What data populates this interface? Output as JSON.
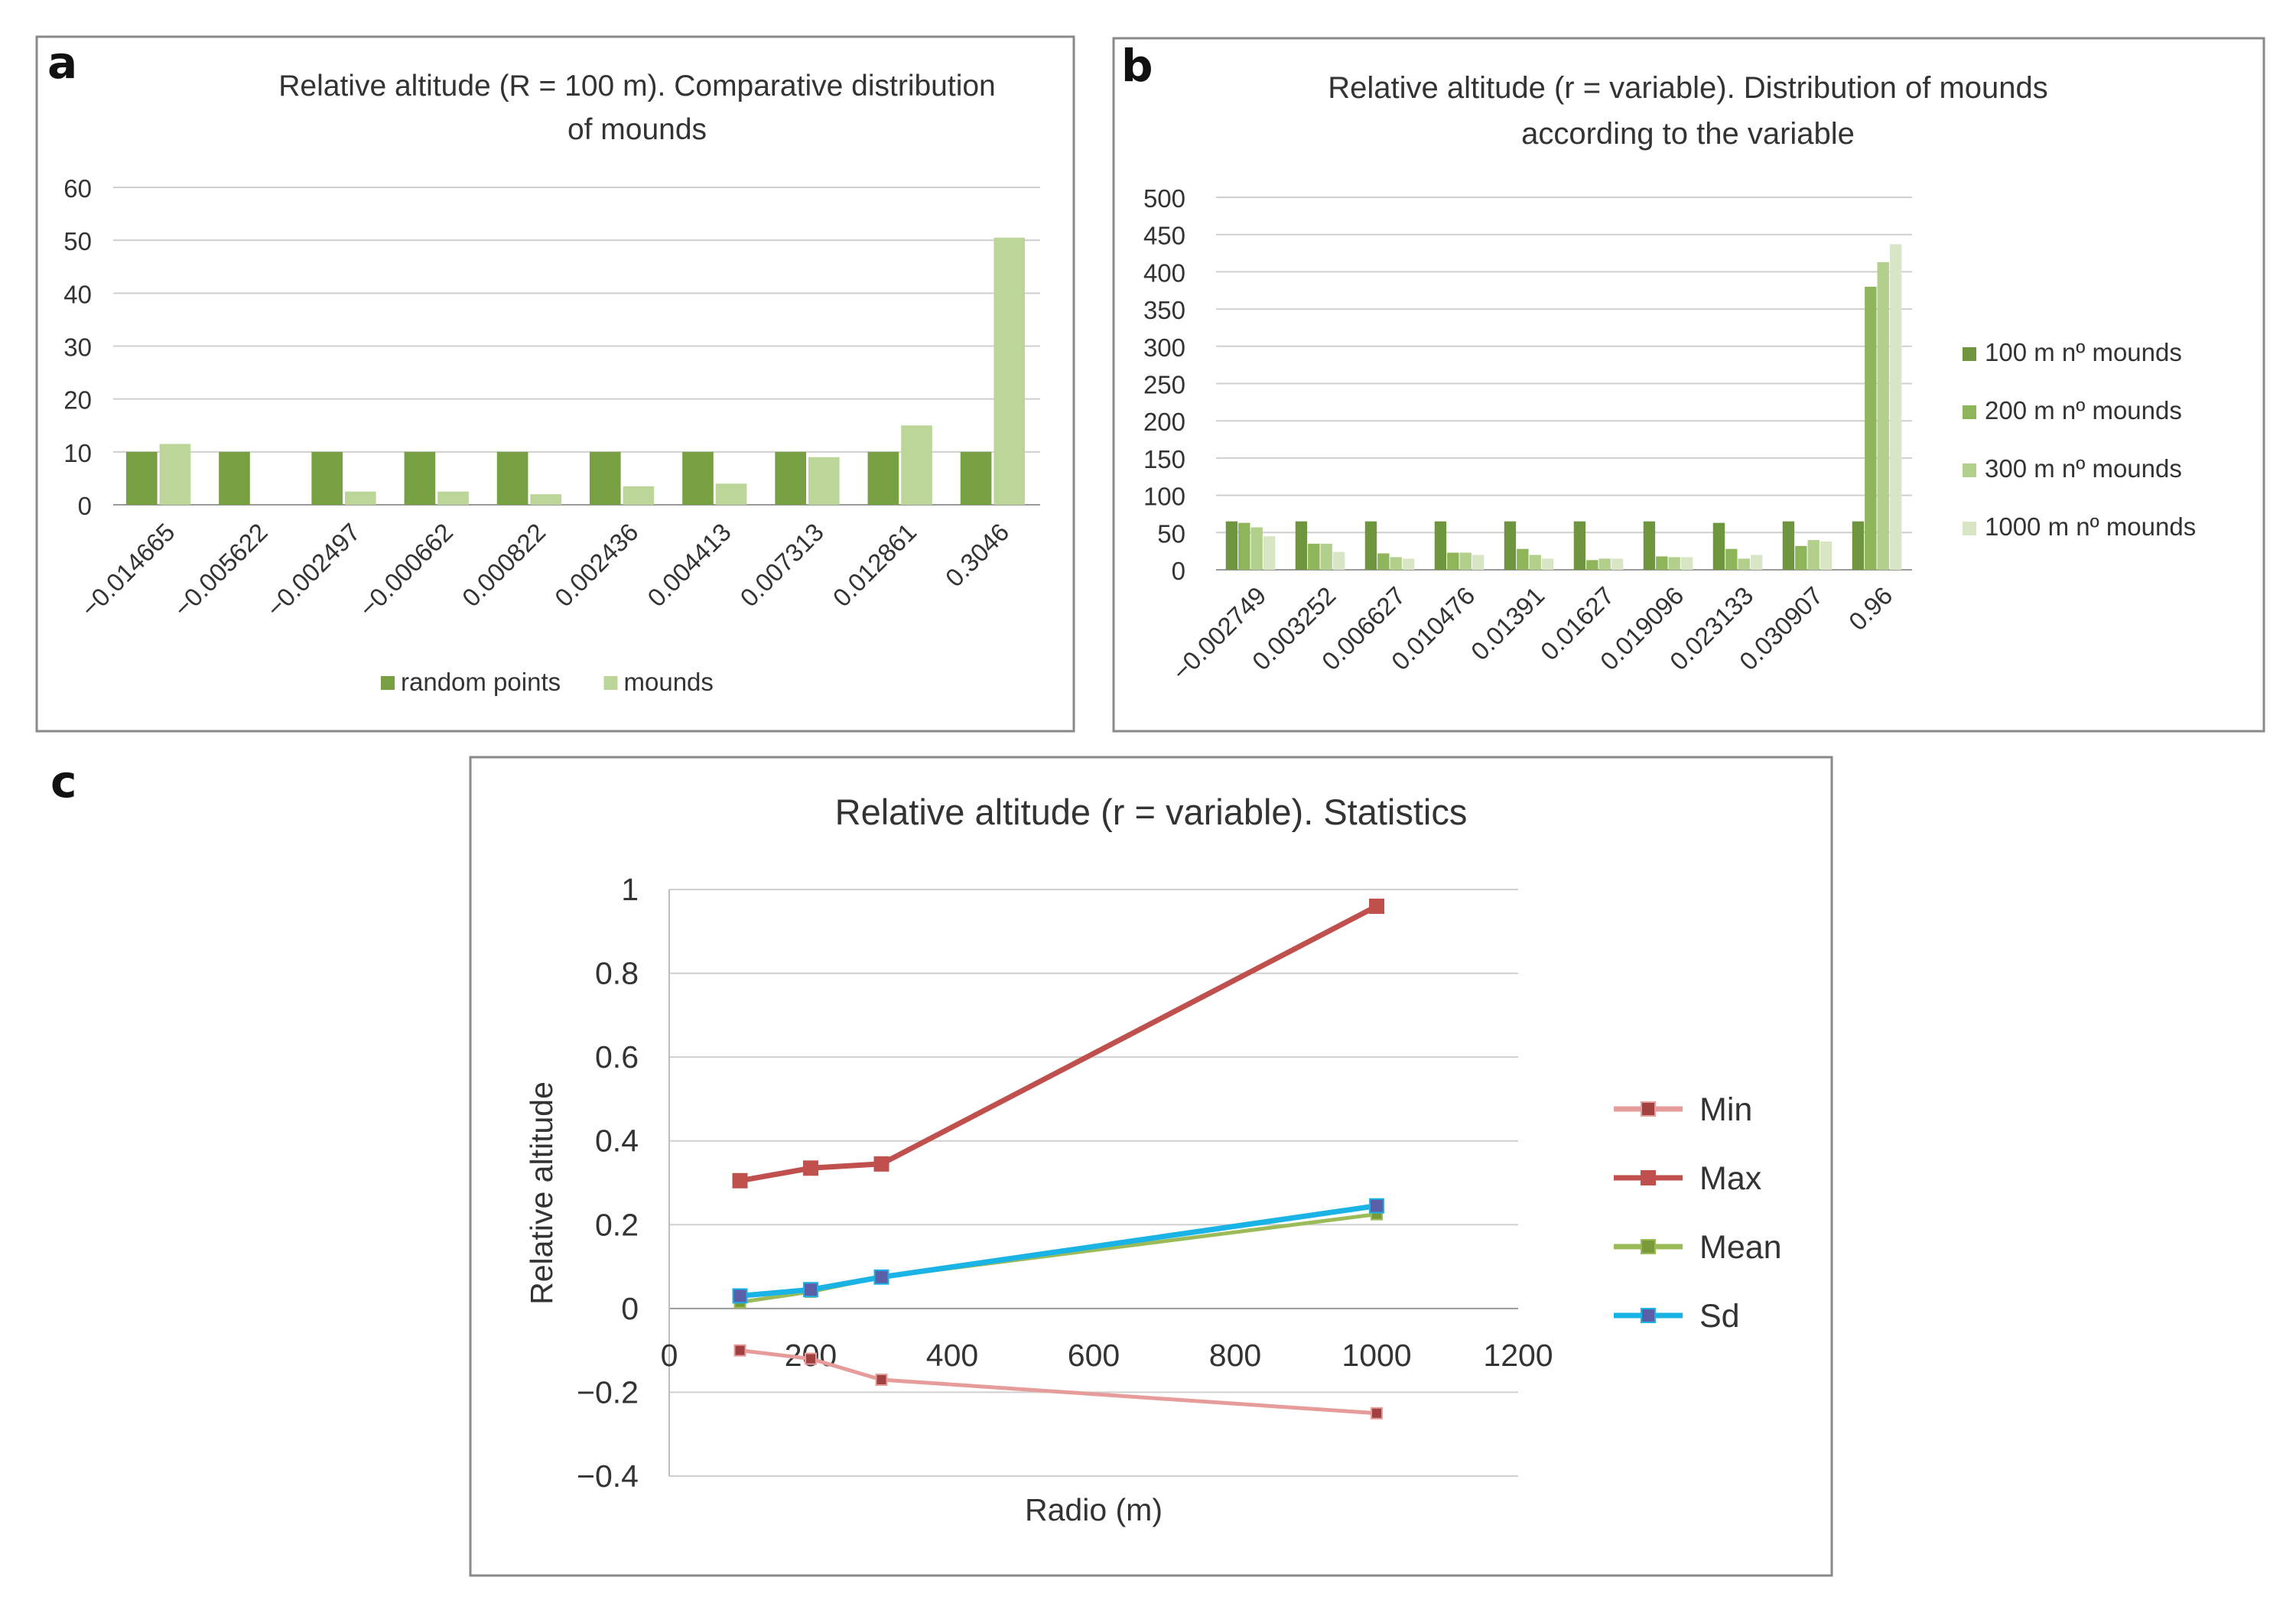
{
  "panel_labels": [
    "a",
    "b",
    "c"
  ],
  "chart_data": [
    {
      "panel": "a",
      "type": "bar",
      "title": "Relative altitude (R = 100 m). Comparative distribution of mounds",
      "title_lines": [
        "Relative altitude (R = 100 m). Comparative distribution",
        "of mounds"
      ],
      "xlabel": "",
      "ylabel": "",
      "ylim": [
        0,
        60
      ],
      "yticks": [
        "0",
        "10",
        "20",
        "30",
        "40",
        "50",
        "60"
      ],
      "categories": [
        "-0.014665",
        "-0.005622",
        "-0.002497",
        "-0.000662",
        "0.000822",
        "0.002436",
        "0.004413",
        "0.007313",
        "0.012861",
        "0.3046"
      ],
      "series": [
        {
          "name": "random points",
          "color": "#77a043",
          "values": [
            10,
            10,
            10,
            10,
            10,
            10,
            10,
            10,
            10,
            10
          ]
        },
        {
          "name": "mounds",
          "color": "#bcd69a",
          "values": [
            11.5,
            0,
            2.5,
            2.5,
            2,
            3.5,
            4,
            9,
            15,
            50.5
          ]
        }
      ],
      "grid": true,
      "legend": "bottom"
    },
    {
      "panel": "b",
      "type": "bar",
      "title": "Relative altitude (r = variable). Distribution of mounds according to the variable",
      "title_lines": [
        "Relative altitude (r = variable). Distribution of mounds",
        "according to the variable"
      ],
      "xlabel": "",
      "ylabel": "",
      "ylim": [
        0,
        500
      ],
      "yticks": [
        "0",
        "50",
        "100",
        "150",
        "200",
        "250",
        "300",
        "350",
        "400",
        "450",
        "500"
      ],
      "categories": [
        "-0.002749",
        "0.003252",
        "0.006627",
        "0.010476",
        "0.01391",
        "0.01627",
        "0.019096",
        "0.023133",
        "0.030907",
        "0.96"
      ],
      "series": [
        {
          "name": "100 m nº mounds",
          "color": "#6f963f",
          "values": [
            65,
            65,
            65,
            65,
            65,
            65,
            65,
            63,
            65,
            65
          ]
        },
        {
          "name": "200 m nº mounds",
          "color": "#8fb55a",
          "values": [
            63,
            35,
            22,
            23,
            28,
            13,
            18,
            28,
            32,
            380
          ]
        },
        {
          "name": "300 m nº mounds",
          "color": "#b3cf8c",
          "values": [
            57,
            35,
            17,
            23,
            20,
            15,
            17,
            15,
            40,
            413
          ]
        },
        {
          "name": "1000 m nº mounds",
          "color": "#d9e6c6",
          "values": [
            45,
            24,
            15,
            20,
            15,
            15,
            17,
            20,
            38,
            437
          ]
        }
      ],
      "grid": true,
      "legend": "right"
    },
    {
      "panel": "c",
      "type": "line",
      "title": "Relative altitude (r = variable). Statistics",
      "xlabel": "Radio (m)",
      "ylabel": "Relative altitude",
      "xlim": [
        0,
        1200
      ],
      "ylim": [
        -0.4,
        1
      ],
      "xticks": [
        "0",
        "200",
        "400",
        "600",
        "800",
        "1000",
        "1200"
      ],
      "yticks": [
        "−0.4",
        "−0.2",
        "0",
        "0.2",
        "0.4",
        "0.6",
        "0.8",
        "1"
      ],
      "x": [
        100,
        200,
        300,
        1000
      ],
      "series": [
        {
          "name": "Min",
          "color": "#e69c9a",
          "marker_color": "#a04040",
          "values": [
            -0.1,
            -0.12,
            -0.17,
            -0.25
          ]
        },
        {
          "name": "Max",
          "color": "#c0504d",
          "marker_color": "#c0504d",
          "values": [
            0.305,
            0.335,
            0.345,
            0.96
          ]
        },
        {
          "name": "Mean",
          "color": "#9bbb59",
          "marker_color": "#7a9a3a",
          "values": [
            0.015,
            0.04,
            0.075,
            0.225
          ]
        },
        {
          "name": "Sd",
          "color": "#19b3e6",
          "marker_color": "#5b5fa8",
          "values": [
            0.03,
            0.045,
            0.075,
            0.245
          ]
        }
      ],
      "grid": true,
      "legend": "right"
    }
  ]
}
